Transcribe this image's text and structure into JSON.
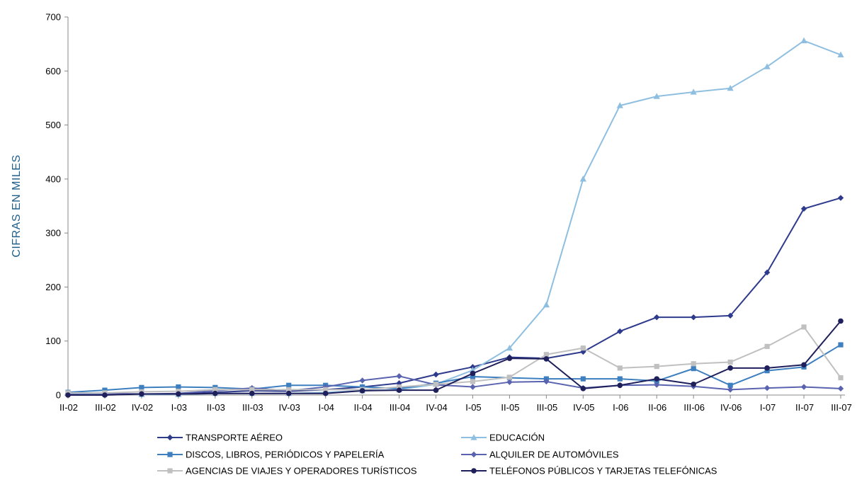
{
  "chart_data": {
    "type": "line",
    "title": "",
    "xlabel": "",
    "ylabel": "CIFRAS EN MILES",
    "ylim": [
      0,
      700
    ],
    "yticks": [
      0,
      100,
      200,
      300,
      400,
      500,
      600,
      700
    ],
    "grid": false,
    "legend_position": "bottom",
    "categories": [
      "II-02",
      "III-02",
      "IV-02",
      "I-03",
      "II-03",
      "III-03",
      "IV-03",
      "I-04",
      "II-04",
      "III-04",
      "IV-04",
      "I-05",
      "II-05",
      "III-05",
      "IV-05",
      "I-06",
      "II-06",
      "III-06",
      "IV-06",
      "I-07",
      "II-07",
      "III-07"
    ],
    "series": [
      {
        "name": "TRANSPORTE AÉREO",
        "color": "#2e3b8c",
        "marker": "diamond",
        "values": [
          3,
          2,
          2,
          2,
          5,
          8,
          7,
          10,
          15,
          22,
          38,
          52,
          70,
          68,
          80,
          118,
          144,
          144,
          147,
          227,
          345,
          365
        ]
      },
      {
        "name": "EDUCACIÓN",
        "color": "#8fbfe0",
        "marker": "triangle",
        "values": [
          3,
          2,
          1,
          1,
          3,
          3,
          3,
          5,
          8,
          10,
          20,
          46,
          87,
          167,
          400,
          536,
          553,
          561,
          568,
          608,
          656,
          630
        ]
      },
      {
        "name": "DISCOS, LIBROS, PERIÓDICOS Y PAPELERÍA",
        "color": "#3d7fbf",
        "marker": "square",
        "values": [
          5,
          9,
          14,
          15,
          14,
          11,
          18,
          18,
          15,
          12,
          22,
          34,
          32,
          30,
          30,
          30,
          26,
          49,
          18,
          45,
          52,
          93
        ]
      },
      {
        "name": "ALQUILER DE AUTOMÓVILES",
        "color": "#5a63b0",
        "marker": "diamond",
        "values": [
          3,
          3,
          2,
          3,
          8,
          13,
          8,
          15,
          27,
          35,
          19,
          15,
          24,
          25,
          13,
          18,
          19,
          16,
          10,
          13,
          15,
          12
        ]
      },
      {
        "name": "AGENCIAS DE VIAJES Y OPERADORES TURÍSTICOS",
        "color": "#c0c0c0",
        "marker": "square",
        "values": [
          4,
          4,
          6,
          7,
          10,
          10,
          10,
          10,
          10,
          15,
          20,
          25,
          33,
          75,
          87,
          50,
          53,
          58,
          61,
          90,
          126,
          32
        ]
      },
      {
        "name": "TELÉFONOS PÚBLICOS Y TARJETAS TELEFÓNICAS",
        "color": "#1f1f5c",
        "marker": "circle",
        "values": [
          0,
          0,
          2,
          2,
          3,
          3,
          3,
          3,
          8,
          9,
          9,
          40,
          68,
          67,
          12,
          18,
          30,
          20,
          50,
          50,
          56,
          137
        ]
      }
    ]
  }
}
